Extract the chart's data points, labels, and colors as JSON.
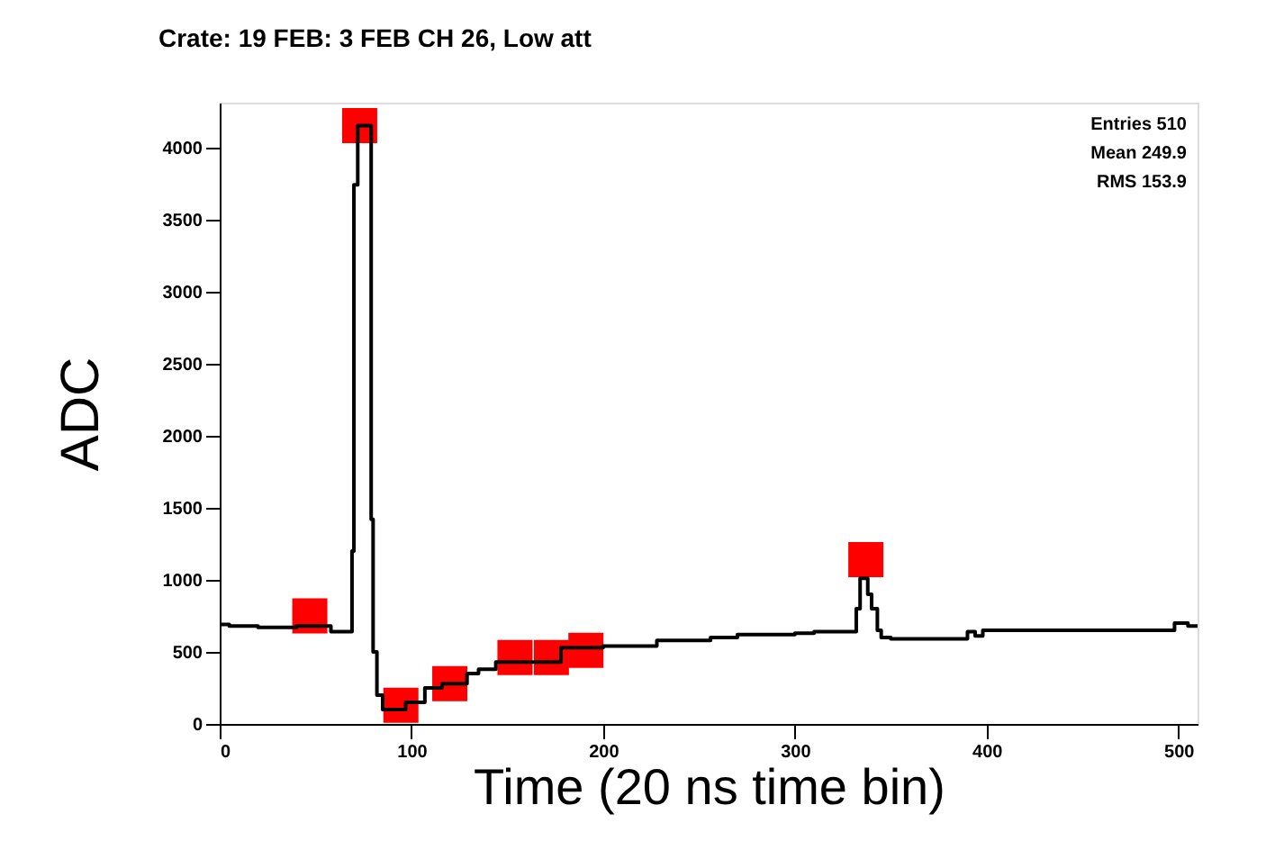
{
  "chart_data": {
    "type": "step",
    "title": "Crate: 19 FEB: 3  FEB CH 26, Low att",
    "xlabel": "Time (20 ns time bin)",
    "ylabel": "ADC",
    "annotations": [
      "Entries 510",
      "Mean 249.9",
      "RMS 153.9"
    ],
    "xlim": [
      0,
      510
    ],
    "ylim": [
      0,
      4310
    ],
    "xticks": [
      0,
      100,
      200,
      300,
      400,
      500
    ],
    "yticks": [
      0,
      500,
      1000,
      1500,
      2000,
      2500,
      3000,
      3500,
      4000
    ],
    "grid": false,
    "legend": false,
    "series": [
      {
        "color": "#000000",
        "line_style": "solid",
        "marker": "none",
        "x": [
          0,
          5,
          20,
          40,
          58,
          68,
          69,
          70,
          72,
          74,
          79,
          80,
          82,
          85,
          88,
          97,
          107,
          116,
          129,
          135,
          144,
          178,
          200,
          228,
          256,
          270,
          300,
          310,
          330,
          332,
          334,
          338,
          340,
          343,
          345,
          350,
          390,
          394,
          398,
          400,
          495,
          498,
          505,
          510
        ],
        "values": [
          690,
          680,
          670,
          680,
          640,
          640,
          1200,
          3740,
          4150,
          4150,
          1420,
          500,
          200,
          100,
          100,
          150,
          250,
          280,
          350,
          380,
          430,
          530,
          540,
          580,
          600,
          620,
          630,
          640,
          640,
          800,
          1010,
          900,
          800,
          650,
          600,
          590,
          640,
          610,
          650,
          650,
          650,
          700,
          680,
          680
        ]
      },
      {
        "type": "scatter",
        "color": "#ff0000",
        "marker": "square",
        "x": [
          47,
          73,
          94.5,
          120,
          154,
          173,
          191,
          337
        ],
        "values": [
          750,
          4150,
          130,
          280,
          460,
          460,
          510,
          1140
        ]
      }
    ]
  }
}
